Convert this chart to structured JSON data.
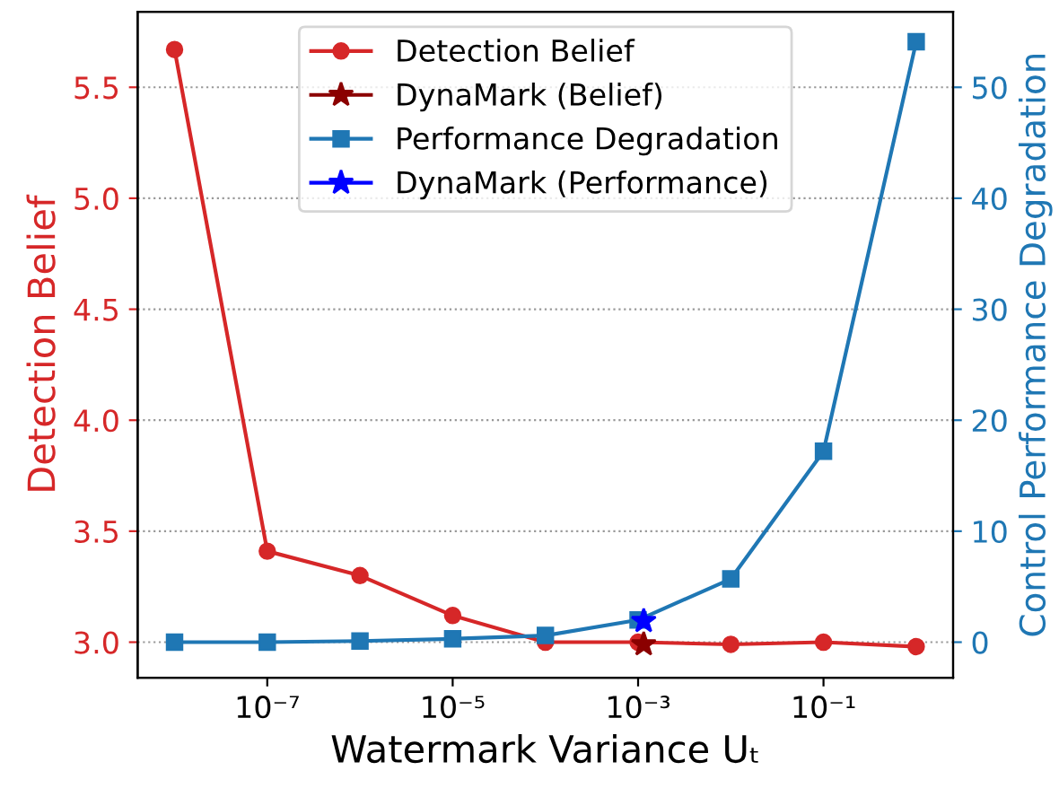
{
  "chart_data": {
    "type": "line",
    "xlabel": "Watermark Variance Uₜ",
    "ylabel": "Detection Belief",
    "y2label": "Control Performance Degradation",
    "log": "x",
    "grid": "y",
    "legend": "top",
    "line_style": "solid",
    "xlim": [
      4e-09,
      2.5
    ],
    "xticks": [
      {
        "value": 1e-07,
        "label": "10⁻⁷"
      },
      {
        "value": 1e-05,
        "label": "10⁻⁵"
      },
      {
        "value": 0.001,
        "label": "10⁻³"
      },
      {
        "value": 0.1,
        "label": "10⁻¹"
      }
    ],
    "ylim": [
      2.84,
      5.84
    ],
    "yticks": [
      {
        "value": 3.0,
        "label": "3.0"
      },
      {
        "value": 3.5,
        "label": "3.5"
      },
      {
        "value": 4.0,
        "label": "4.0"
      },
      {
        "value": 4.5,
        "label": "4.5"
      },
      {
        "value": 5.0,
        "label": "5.0"
      },
      {
        "value": 5.5,
        "label": "5.5"
      }
    ],
    "y2lim": [
      -3.2,
      56.8
    ],
    "y2ticks": [
      0,
      10,
      20,
      30,
      40,
      50
    ],
    "series": [
      {
        "name": "Detection Belief",
        "color": "#d62728",
        "marker": "circle",
        "x": [
          1e-08,
          1e-07,
          1e-06,
          1e-05,
          0.0001,
          0.001,
          0.01,
          0.1,
          1
        ],
        "values": [
          5.67,
          3.41,
          3.3,
          3.12,
          3.0,
          3.0,
          2.99,
          3.0,
          2.98
        ]
      },
      {
        "name": "DynaMark (Belief)",
        "color": "#8b0000",
        "marker": "star",
        "x": [
          0.00115
        ],
        "values": [
          2.99
        ]
      },
      {
        "name": "Performance Degradation",
        "color": "#1f77b4",
        "marker": "square",
        "axis": "y2",
        "x": [
          1e-08,
          1e-07,
          1e-06,
          1e-05,
          0.0001,
          0.001,
          0.01,
          0.1,
          1
        ],
        "values": [
          0.0,
          0.0,
          0.1,
          0.3,
          0.6,
          2.0,
          5.7,
          17.2,
          54.1
        ]
      },
      {
        "name": "DynaMark (Performance)",
        "color": "#0000ff",
        "marker": "star",
        "axis": "y2",
        "x": [
          0.00115
        ],
        "values": [
          1.9
        ]
      }
    ]
  }
}
